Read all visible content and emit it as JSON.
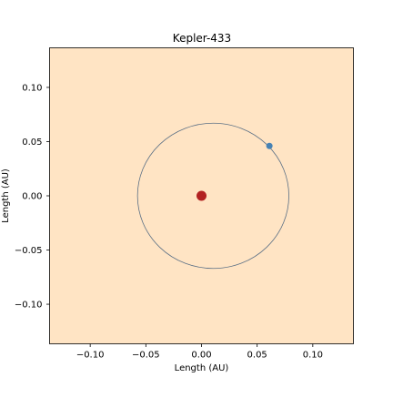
{
  "chart_data": {
    "type": "scatter",
    "title": "Kepler-433",
    "xlabel": "Length (AU)",
    "ylabel": "Length (AU)",
    "xlim": [
      -0.1365,
      0.1365
    ],
    "ylim": [
      -0.1365,
      0.1365
    ],
    "xticks": [
      -0.1,
      -0.05,
      0.0,
      0.05,
      0.1
    ],
    "yticks": [
      -0.1,
      -0.05,
      0.0,
      0.05,
      0.1
    ],
    "xtick_labels": [
      "−0.10",
      "−0.05",
      "0.00",
      "0.05",
      "0.10"
    ],
    "ytick_labels": [
      "−0.10",
      "−0.05",
      "0.00",
      "0.05",
      "0.10"
    ],
    "grid": false,
    "background_color": "#FFE4C4",
    "star": {
      "x": 0.0,
      "y": 0.0,
      "color": "#B22222"
    },
    "planet": {
      "x": 0.061,
      "y": 0.046,
      "color": "#4682B4"
    },
    "orbit": {
      "center_x": 0.0105,
      "center_y": 0.0,
      "radius_x": 0.068,
      "radius_y": 0.067,
      "color": "#5a6f85"
    }
  }
}
